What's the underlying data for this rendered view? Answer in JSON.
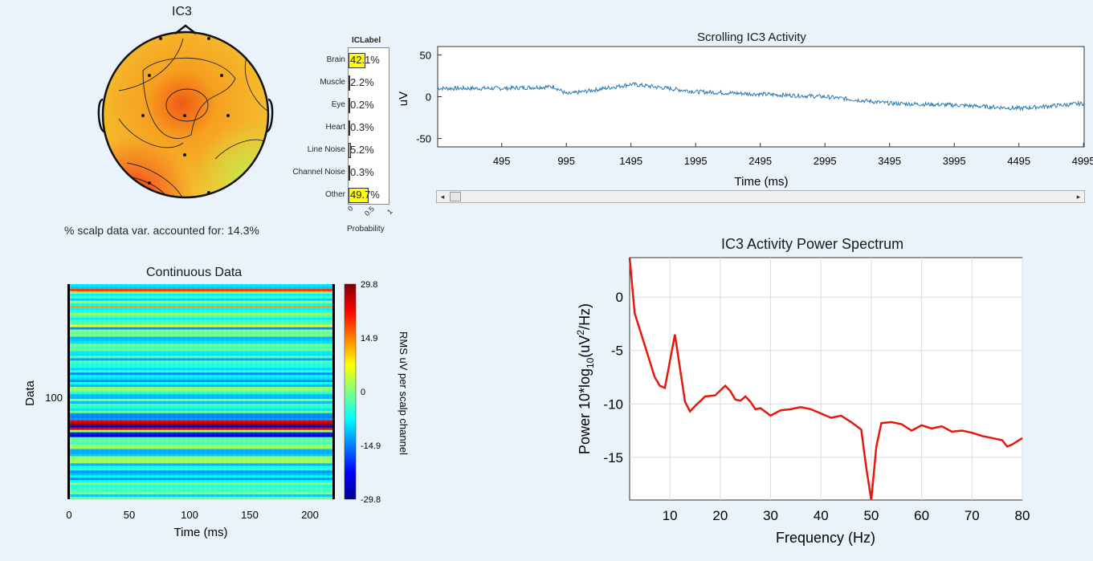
{
  "topo": {
    "title": "IC3",
    "variance_text": "% scalp data var. accounted for: 14.3%"
  },
  "iclabel": {
    "title": "ICLabel",
    "xlabel": "Probability",
    "xticks": [
      "0",
      "0.5",
      "1"
    ],
    "classes": [
      {
        "name": "Brain",
        "value_text": "42.1%",
        "prob": 0.421
      },
      {
        "name": "Muscle",
        "value_text": "2.2%",
        "prob": 0.022
      },
      {
        "name": "Eye",
        "value_text": "0.2%",
        "prob": 0.002
      },
      {
        "name": "Heart",
        "value_text": "0.3%",
        "prob": 0.003
      },
      {
        "name": "Line Noise",
        "value_text": "5.2%",
        "prob": 0.052
      },
      {
        "name": "Channel Noise",
        "value_text": "0.3%",
        "prob": 0.003
      },
      {
        "name": "Other",
        "value_text": "49.7%",
        "prob": 0.497
      }
    ],
    "bar_color": "#ffff00"
  },
  "scroll": {
    "title": "Scrolling IC3 Activity",
    "ylabel": "uV",
    "xlabel": "Time (ms)",
    "yticks": [
      "50",
      "0",
      "-50"
    ],
    "xticks": [
      "495",
      "995",
      "1495",
      "1995",
      "2495",
      "2995",
      "3495",
      "3995",
      "4495",
      "4995"
    ],
    "line_color": "#2a7ab0"
  },
  "continuous": {
    "title": "Continuous Data",
    "ylabel": "Data",
    "xlabel": "Time (ms)",
    "ytick": "100",
    "xticks": [
      "0",
      "50",
      "100",
      "150",
      "200"
    ],
    "colorbar_ticks": [
      "29.8",
      "14.9",
      "0",
      "-14.9",
      "-29.8"
    ],
    "colorbar_label": "RMS uV per scalp channel"
  },
  "chart_data": [
    {
      "type": "line",
      "title": "Scrolling IC3 Activity",
      "xlabel": "Time (ms)",
      "ylabel": "uV",
      "x": [
        0,
        500,
        900,
        1000,
        1500,
        2000,
        2500,
        3000,
        3500,
        4000,
        4500,
        5000
      ],
      "values": [
        10,
        10,
        12,
        3,
        15,
        6,
        3,
        0,
        -8,
        -10,
        -14,
        -8
      ],
      "xlim": [
        0,
        5000
      ],
      "ylim": [
        -60,
        60
      ],
      "ytick_values": [
        50,
        0,
        -50
      ],
      "xtick_values": [
        495,
        995,
        1495,
        1995,
        2495,
        2995,
        3495,
        3995,
        4495,
        4995
      ]
    },
    {
      "type": "line",
      "title": "IC3 Activity Power Spectrum",
      "xlabel": "Frequency (Hz)",
      "ylabel_parts": [
        "Power 10*log",
        "10",
        "(uV",
        "2",
        "/Hz)"
      ],
      "x": [
        2,
        3,
        5,
        7,
        8,
        9,
        11,
        13,
        14,
        15,
        17,
        19,
        21,
        22,
        23,
        24,
        25,
        26,
        27,
        28,
        30,
        32,
        34,
        36,
        38,
        40,
        42,
        44,
        46,
        48,
        49,
        50,
        51,
        52,
        54,
        56,
        58,
        60,
        62,
        64,
        66,
        68,
        70,
        72,
        74,
        76,
        77,
        78,
        80
      ],
      "values": [
        4,
        -1.5,
        -4.5,
        -7.5,
        -8.3,
        -8.5,
        -3.5,
        -9.8,
        -10.7,
        -10.2,
        -9.3,
        -9.2,
        -8.3,
        -8.8,
        -9.6,
        -9.7,
        -9.3,
        -9.8,
        -10.5,
        -10.4,
        -11.1,
        -10.6,
        -10.5,
        -10.3,
        -10.5,
        -10.9,
        -11.3,
        -11.1,
        -11.7,
        -12.4,
        -16,
        -19,
        -14,
        -11.8,
        -11.7,
        -11.9,
        -12.5,
        -12,
        -12.3,
        -12.1,
        -12.6,
        -12.5,
        -12.7,
        -13,
        -13.2,
        -13.4,
        -14,
        -13.8,
        -13.2
      ],
      "xlim": [
        2,
        80
      ],
      "ylim": [
        -19,
        3.7
      ],
      "xtick_values": [
        10,
        20,
        30,
        40,
        50,
        60,
        70,
        80
      ],
      "ytick_values": [
        0,
        -5,
        -10,
        -15
      ],
      "line_color": "#e8160c"
    }
  ]
}
